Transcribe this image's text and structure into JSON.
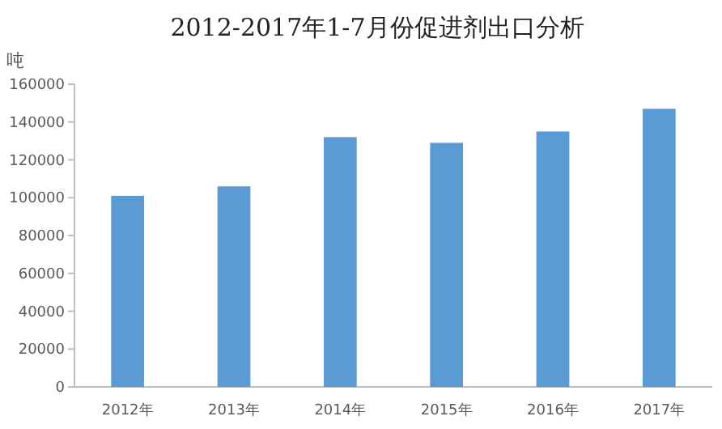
{
  "chart_data": {
    "type": "bar",
    "title": "2012-2017年1-7月份促进剂出口分析",
    "ylabel": "吨",
    "categories": [
      "2012年",
      "2013年",
      "2014年",
      "2015年",
      "2016年",
      "2017年"
    ],
    "values": [
      101000,
      106000,
      132000,
      129000,
      135000,
      147000
    ],
    "color": "#5b9bd5",
    "ylim": [
      0,
      160000
    ],
    "yticks": [
      0,
      20000,
      40000,
      60000,
      80000,
      100000,
      120000,
      140000,
      160000
    ],
    "grid": false
  }
}
